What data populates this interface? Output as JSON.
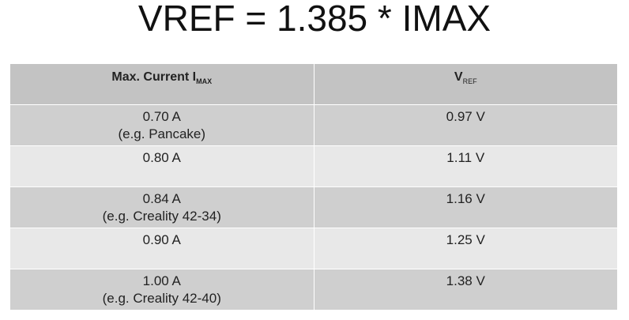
{
  "title": "VREF = 1.385 * IMAX",
  "table": {
    "header": [
      {
        "text": "Max. Current I",
        "sub": "MAX"
      },
      {
        "text": "V",
        "sub": "REF"
      }
    ],
    "rows": [
      [
        [
          "0.70 A",
          "(e.g. Pancake)"
        ],
        [
          "0.97 V"
        ]
      ],
      [
        [
          "0.80 A"
        ],
        [
          "1.11 V"
        ]
      ],
      [
        [
          "0.84 A",
          "(e.g. Creality 42-34)"
        ],
        [
          "1.16 V"
        ]
      ],
      [
        [
          "0.90 A"
        ],
        [
          "1.25 V"
        ]
      ],
      [
        [
          "1.00 A",
          "(e.g. Creality 42-40)"
        ],
        [
          "1.38 V"
        ]
      ]
    ]
  }
}
